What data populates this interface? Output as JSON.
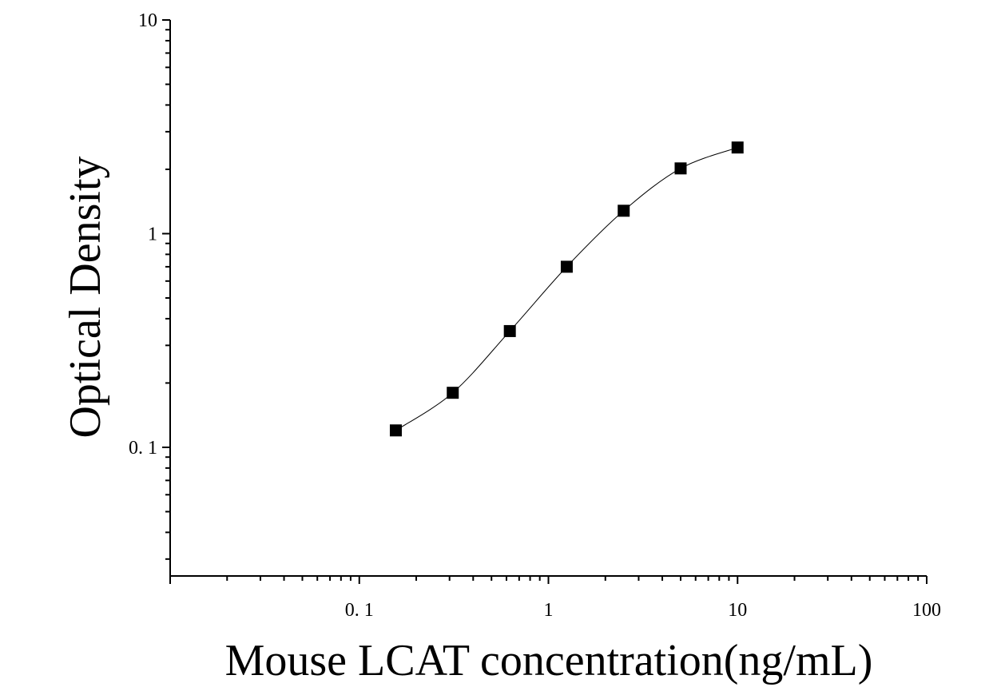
{
  "chart_data": {
    "type": "scatter",
    "xlabel": "Mouse LCAT concentration(ng/mL)",
    "ylabel": "Optical Density",
    "x_scale": "log",
    "y_scale": "log",
    "xlim": [
      0.01,
      100
    ],
    "ylim": [
      0.025,
      10
    ],
    "x_ticks": [
      {
        "value": 0.1,
        "label": "0. 1"
      },
      {
        "value": 1,
        "label": "1"
      },
      {
        "value": 10,
        "label": "10"
      },
      {
        "value": 100,
        "label": "100"
      }
    ],
    "y_ticks": [
      {
        "value": 0.1,
        "label": "0. 1"
      },
      {
        "value": 1,
        "label": "1"
      },
      {
        "value": 10,
        "label": "10"
      }
    ],
    "grid": false,
    "marker": "square",
    "marker_color": "#000000",
    "curve_color": "#000000",
    "series": [
      {
        "x": [
          0.156,
          0.312,
          0.625,
          1.25,
          2.5,
          5,
          10
        ],
        "y": [
          0.12,
          0.18,
          0.35,
          0.7,
          1.28,
          2.02,
          2.53
        ]
      }
    ]
  }
}
